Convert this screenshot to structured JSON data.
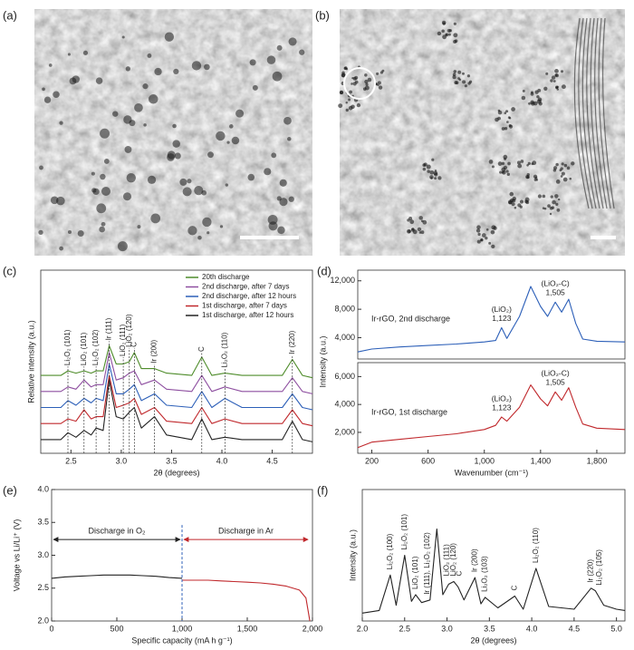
{
  "images": [
    {
      "label": "(a)"
    },
    {
      "label": "(b)"
    }
  ],
  "chart_data": [
    {
      "type": "line",
      "label": "(c)",
      "xlabel": "2θ (degrees)",
      "ylabel": "Relative intensity (a.u.)",
      "xlim": [
        2.2,
        4.9
      ],
      "xticks": [
        2.5,
        {
          "value": 3,
          "label": "3.0"
        },
        3.5,
        {
          "value": 4,
          "label": "4.0"
        },
        4.5
      ],
      "ylim": [
        0,
        8
      ],
      "legend": "upper right",
      "annotation_lines": "dashed",
      "x": [
        2.2,
        2.4,
        2.47,
        2.55,
        2.63,
        2.7,
        2.75,
        2.82,
        2.88,
        2.95,
        3.02,
        3.08,
        3.13,
        3.2,
        3.33,
        3.45,
        3.7,
        3.8,
        3.9,
        4.03,
        4.2,
        4.6,
        4.7,
        4.8,
        4.9
      ],
      "series": [
        {
          "name": "20th discharge",
          "color": "#4e8c2a",
          "values": [
            3.4,
            3.4,
            3.6,
            3.5,
            3.6,
            3.5,
            3.6,
            3.6,
            4.7,
            3.9,
            3.9,
            4.0,
            4.4,
            3.7,
            3.7,
            3.5,
            3.4,
            4.2,
            3.4,
            3.5,
            3.4,
            3.4,
            4.1,
            3.4,
            3.3
          ]
        },
        {
          "name": "2nd discharge, after 7 days",
          "color": "#8e4fa0",
          "values": [
            2.7,
            2.7,
            2.9,
            2.8,
            3.2,
            2.9,
            3.0,
            3.0,
            4.4,
            3.2,
            3.3,
            3.5,
            3.6,
            3.0,
            3.2,
            2.8,
            2.7,
            3.4,
            2.7,
            2.9,
            2.7,
            2.7,
            3.3,
            2.7,
            2.6
          ]
        },
        {
          "name": "2nd discharge, after 12 hours",
          "color": "#2c5fb8",
          "values": [
            2.0,
            2.0,
            2.3,
            2.1,
            2.4,
            2.2,
            2.4,
            2.3,
            3.9,
            2.6,
            2.6,
            2.8,
            3.0,
            2.3,
            2.6,
            2.1,
            2.0,
            2.7,
            2.0,
            2.4,
            2.0,
            2.0,
            2.6,
            2.0,
            1.9
          ]
        },
        {
          "name": "1st discharge, after 7 days",
          "color": "#c0282c",
          "values": [
            1.3,
            1.3,
            1.5,
            1.4,
            1.9,
            1.5,
            1.6,
            1.6,
            3.4,
            2.0,
            2.1,
            2.2,
            2.4,
            1.7,
            2.0,
            1.4,
            1.3,
            2.0,
            1.3,
            1.5,
            1.3,
            1.3,
            1.9,
            1.3,
            1.2
          ]
        },
        {
          "name": "1st discharge, after 12 hours",
          "color": "#222222",
          "values": [
            0.6,
            0.6,
            0.9,
            0.7,
            1.0,
            0.8,
            1.1,
            1.0,
            3.2,
            1.6,
            1.5,
            1.8,
            2.0,
            1.1,
            1.6,
            0.8,
            0.6,
            1.5,
            0.6,
            0.7,
            0.6,
            0.6,
            1.4,
            0.6,
            0.5
          ]
        }
      ],
      "annotations": [
        {
          "text": "Li₂O₂ (101)",
          "x": 2.47,
          "color": "#2c5fb8"
        },
        {
          "text": "LiO₂ (101)",
          "x": 2.63,
          "color": "#c0282c"
        },
        {
          "text": "Li₂O₂ (102)",
          "x": 2.75,
          "color": "#2c5fb8"
        },
        {
          "text": "Ir (111)",
          "x": 2.88,
          "color": "#222222"
        },
        {
          "text": "LiO₂ (111)",
          "x": 3.02,
          "color": "#c0282c"
        },
        {
          "text": "LiO₂ (120)",
          "x": 3.08,
          "color": "#c0282c"
        },
        {
          "text": "C",
          "x": 3.13,
          "color": "#222222"
        },
        {
          "text": "Ir (200)",
          "x": 3.33,
          "color": "#222222"
        },
        {
          "text": "C",
          "x": 3.8,
          "color": "#222222"
        },
        {
          "text": "Li₂O₂ (110)",
          "x": 4.03,
          "color": "#2c5fb8"
        },
        {
          "text": "Ir (220)",
          "x": 4.7,
          "color": "#222222"
        }
      ]
    },
    {
      "type": "line",
      "label": "(d)",
      "ylabel": "Intensity (a.u.)",
      "legend": "inline",
      "xlim": [
        100,
        2000
      ],
      "ylim": [
        1000,
        13500
      ],
      "yticks": [
        {
          "value": 4000,
          "label": "4,000"
        },
        {
          "value": 8000,
          "label": "8,000"
        },
        {
          "value": 12000,
          "label": "12,000"
        }
      ],
      "x": [
        100,
        200,
        400,
        600,
        800,
        1000,
        1080,
        1123,
        1160,
        1250,
        1330,
        1400,
        1450,
        1505,
        1550,
        1600,
        1650,
        1700,
        1800,
        2000
      ],
      "series": [
        {
          "name": "Ir-rGO, 2nd discharge",
          "color": "#2c5fb8",
          "values": [
            2000,
            2400,
            2700,
            2900,
            3100,
            3400,
            3600,
            5400,
            3900,
            7000,
            11200,
            8400,
            7000,
            9000,
            7600,
            9400,
            6000,
            3800,
            3500,
            3400
          ]
        }
      ],
      "annotations": [
        {
          "lines": [
            "(LiO₂)",
            "1,123"
          ],
          "x": 1123
        },
        {
          "lines": [
            "(LiO₂-C)",
            "1,505"
          ],
          "x": 1505
        }
      ]
    },
    {
      "type": "line",
      "xlabel": "Wavenumber (cm⁻¹)",
      "legend": "inline",
      "xlim": [
        100,
        2000
      ],
      "xticks": [
        200,
        600,
        {
          "value": 1000,
          "label": "1,000"
        },
        {
          "value": 1400,
          "label": "1,400"
        },
        {
          "value": 1800,
          "label": "1,800"
        }
      ],
      "ylim": [
        500,
        7000
      ],
      "yticks": [
        {
          "value": 2000,
          "label": "2,000"
        },
        {
          "value": 4000,
          "label": "4,000"
        },
        {
          "value": 6000,
          "label": "6,000"
        }
      ],
      "x": [
        100,
        200,
        400,
        600,
        800,
        1000,
        1080,
        1123,
        1160,
        1250,
        1330,
        1400,
        1450,
        1505,
        1550,
        1600,
        1650,
        1700,
        1800,
        2000
      ],
      "series": [
        {
          "name": "Ir-rGO, 1st discharge",
          "color": "#c0282c",
          "values": [
            900,
            1300,
            1500,
            1700,
            1900,
            2200,
            2500,
            3100,
            2800,
            3800,
            5400,
            4400,
            3900,
            4900,
            4300,
            5200,
            3800,
            2600,
            2300,
            2200
          ]
        }
      ],
      "annotations": [
        {
          "lines": [
            "(LiO₂)",
            "1,123"
          ],
          "x": 1123
        },
        {
          "lines": [
            "(LiO₂-C)",
            "1,505"
          ],
          "x": 1505
        }
      ]
    },
    {
      "type": "line",
      "label": "(e)",
      "xlabel": "Specific capacity (mA h g⁻¹)",
      "ylabel": "Voltage vs Li/Li⁺ (V)",
      "legend": "arrows",
      "xlim": [
        0,
        2000
      ],
      "xticks": [
        0,
        500,
        {
          "value": 1000,
          "label": "1,000"
        },
        {
          "value": 1500,
          "label": "1,500"
        },
        {
          "value": 2000,
          "label": "2,000"
        }
      ],
      "ylim": [
        2,
        4
      ],
      "yticks": [
        {
          "value": 2,
          "label": "2.0"
        },
        2.5,
        {
          "value": 3,
          "label": "3.0"
        },
        3.5,
        {
          "value": 4,
          "label": "4.0"
        }
      ],
      "series": [
        {
          "name": "Discharge in O₂",
          "color": "#222222",
          "x": [
            0,
            100,
            200,
            300,
            400,
            500,
            600,
            700,
            800,
            900,
            1000
          ],
          "values": [
            2.65,
            2.67,
            2.68,
            2.69,
            2.7,
            2.7,
            2.7,
            2.69,
            2.68,
            2.66,
            2.65
          ]
        },
        {
          "name": "Discharge in Ar",
          "color": "#c0282c",
          "x": [
            1000,
            1100,
            1200,
            1300,
            1400,
            1500,
            1600,
            1700,
            1800,
            1900,
            1950,
            1980
          ],
          "values": [
            2.62,
            2.62,
            2.62,
            2.61,
            2.6,
            2.59,
            2.58,
            2.56,
            2.53,
            2.47,
            2.35,
            2.0
          ]
        }
      ]
    },
    {
      "type": "line",
      "label": "(f)",
      "xlabel": "2θ (degrees)",
      "ylabel": "Intensity (a.u.)",
      "xlim": [
        2.0,
        5.1
      ],
      "xticks": [
        {
          "value": 2,
          "label": "2.0"
        },
        2.5,
        {
          "value": 3,
          "label": "3.0"
        },
        3.5,
        {
          "value": 4,
          "label": "4.0"
        },
        4.5,
        {
          "value": 5,
          "label": "5.0"
        }
      ],
      "ylim": [
        0,
        10
      ],
      "x": [
        2.0,
        2.2,
        2.33,
        2.4,
        2.5,
        2.58,
        2.63,
        2.7,
        2.8,
        2.88,
        2.95,
        3.02,
        3.08,
        3.13,
        3.2,
        3.33,
        3.4,
        3.45,
        3.6,
        3.8,
        3.9,
        4.05,
        4.2,
        4.5,
        4.7,
        4.75,
        4.85,
        5.0,
        5.1
      ],
      "series": [
        {
          "color": "#222222",
          "values": [
            0.6,
            0.8,
            3.5,
            1.2,
            5.0,
            1.5,
            2.0,
            1.4,
            1.6,
            7.0,
            2.0,
            2.8,
            3.0,
            2.6,
            1.6,
            3.3,
            1.3,
            1.8,
            1.0,
            1.9,
            0.9,
            4.0,
            1.1,
            0.9,
            2.5,
            2.3,
            1.2,
            0.9,
            0.8
          ]
        }
      ],
      "annotations": [
        {
          "text": "Li₂O₂ (100)",
          "x": 2.33,
          "color": "#2c5fb8"
        },
        {
          "text": "Li₂O₂ (101)",
          "x": 2.5,
          "color": "#2c5fb8"
        },
        {
          "text": "LiO₂ (101)",
          "x": 2.63,
          "color": "#c0282c"
        },
        {
          "text": "Ir (111), Li₂O₂ (102)",
          "x": 2.77,
          "color": "#222222"
        },
        {
          "text": "LiO₂ (111)",
          "x": 3.0,
          "color": "#c0282c"
        },
        {
          "text": "LiO₂ (120)",
          "x": 3.08,
          "color": "#c0282c"
        },
        {
          "text": "C",
          "x": 3.15,
          "color": "#222222"
        },
        {
          "text": "Ir (200)",
          "x": 3.33,
          "color": "#222222"
        },
        {
          "text": "Li₂O₂ (103)",
          "x": 3.45,
          "color": "#2c5fb8"
        },
        {
          "text": "C",
          "x": 3.8,
          "color": "#222222"
        },
        {
          "text": "Li₂O₂ (110)",
          "x": 4.05,
          "color": "#2c5fb8"
        },
        {
          "text": "Ir (220)",
          "x": 4.7,
          "color": "#222222"
        },
        {
          "text": "Li₂O₂ (105)",
          "x": 4.8,
          "color": "#2c5fb8"
        }
      ]
    }
  ]
}
